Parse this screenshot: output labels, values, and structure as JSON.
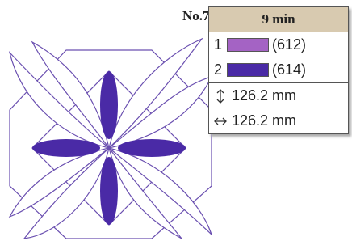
{
  "label": "No.7",
  "time": "9 min",
  "colors": [
    {
      "number": "1",
      "color": "#a463c4",
      "code": "(612)"
    },
    {
      "number": "2",
      "color": "#4a2aa6",
      "code": "(614)"
    }
  ],
  "dimensions": {
    "height": "126.2 mm",
    "width": "126.2 mm"
  }
}
